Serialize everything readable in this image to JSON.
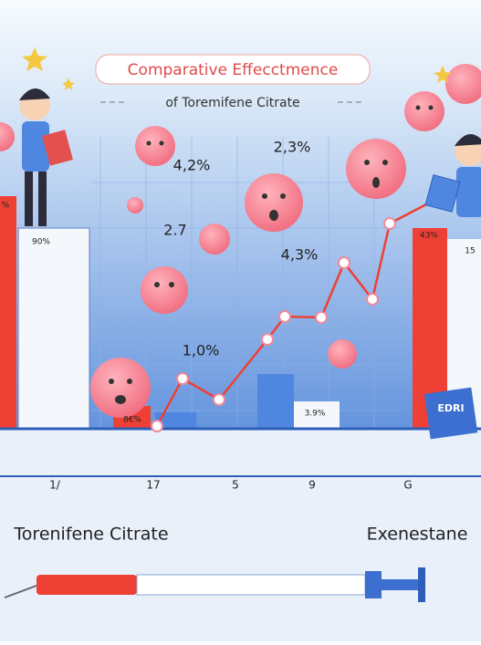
{
  "header": {
    "title": "Comparative Effecctmence",
    "subtitle": "of Toremifene Citrate"
  },
  "labels": [
    "2,3%",
    "4,2%",
    "2.7",
    "4,3%",
    "1,0%",
    "90%",
    "%",
    "8€%",
    "3.9%",
    "43%",
    "15"
  ],
  "axis_labels": [
    "1/",
    "17",
    "5",
    "9",
    "G"
  ],
  "names": {
    "left": "Torenifene Citrate",
    "right": "Exenestane"
  },
  "book": {
    "label": "EDRI"
  }
}
